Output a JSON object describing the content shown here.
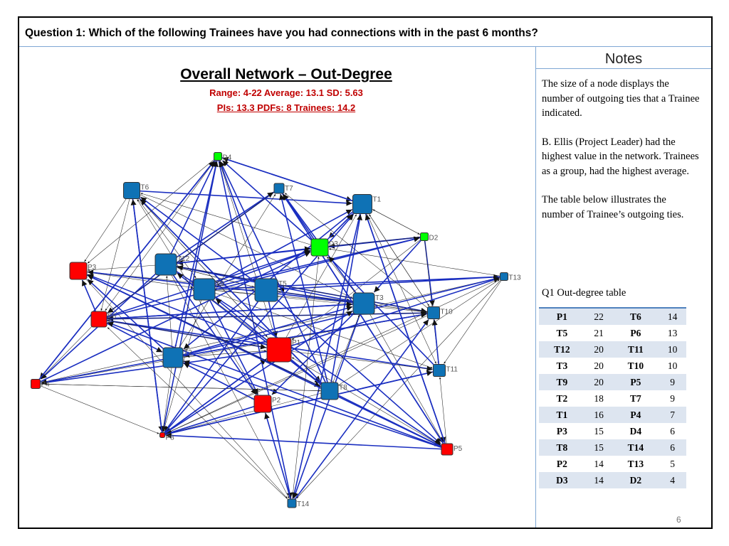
{
  "question": "Question 1: Which of the following Trainees have you had connections with in the past 6 months?",
  "network": {
    "title": "Overall Network – Out-Degree",
    "stats_line1": "Range: 4-22  Average: 13.1  SD: 5.63",
    "stats_line2": "PIs: 13.3 PDFs: 8  Trainees: 14.2",
    "colors": {
      "trainee": "#0f72b5",
      "pi": "#ff0000",
      "pdf": "#00ff00",
      "tie_heavy": "#1a2ec0",
      "tie_light": "#222222"
    },
    "nodes": [
      {
        "id": "D4",
        "color": "pdf"
      },
      {
        "id": "T6",
        "color": "trainee"
      },
      {
        "id": "T7",
        "color": "trainee"
      },
      {
        "id": "T1",
        "color": "trainee"
      },
      {
        "id": "D2",
        "color": "pdf"
      },
      {
        "id": "D3",
        "color": "pdf"
      },
      {
        "id": "P3",
        "color": "pi"
      },
      {
        "id": "T12",
        "color": "trainee"
      },
      {
        "id": "T9",
        "color": "trainee"
      },
      {
        "id": "T5",
        "color": "trainee"
      },
      {
        "id": "T13",
        "color": "trainee"
      },
      {
        "id": "T3",
        "color": "trainee"
      },
      {
        "id": "P6",
        "color": "pi"
      },
      {
        "id": "T10",
        "color": "trainee"
      },
      {
        "id": "P1",
        "color": "pi"
      },
      {
        "id": "T2",
        "color": "trainee"
      },
      {
        "id": "T11",
        "color": "trainee"
      },
      {
        "id": "P4",
        "color": "pi"
      },
      {
        "id": "T8",
        "color": "trainee"
      },
      {
        "id": "P2",
        "color": "pi"
      },
      {
        "id": "P8",
        "color": "pi"
      },
      {
        "id": "P5",
        "color": "pi"
      },
      {
        "id": "T14",
        "color": "trainee"
      }
    ]
  },
  "notes": {
    "title": "Notes",
    "p1": "The size of a node displays the number of outgoing ties that a Trainee indicated.",
    "p2": "B. Ellis (Project Leader) had the highest value in the network.  Trainees as a group, had the highest average.",
    "p3": "The table below illustrates the number of Trainee’s outgoing ties."
  },
  "table": {
    "caption": "Q1 Out-degree table",
    "rows": [
      [
        "P1",
        "22",
        "T6",
        "14"
      ],
      [
        "T5",
        "21",
        "P6",
        "13"
      ],
      [
        "T12",
        "20",
        "T11",
        "10"
      ],
      [
        "T3",
        "20",
        "T10",
        "10"
      ],
      [
        "T9",
        "20",
        "P5",
        "9"
      ],
      [
        "T2",
        "18",
        "T7",
        "9"
      ],
      [
        "T1",
        "16",
        "P4",
        "7"
      ],
      [
        "P3",
        "15",
        "D4",
        "6"
      ],
      [
        "T8",
        "15",
        "T14",
        "6"
      ],
      [
        "P2",
        "14",
        "T13",
        "5"
      ],
      [
        "D3",
        "14",
        "D2",
        "4"
      ]
    ]
  },
  "page_number": "6"
}
